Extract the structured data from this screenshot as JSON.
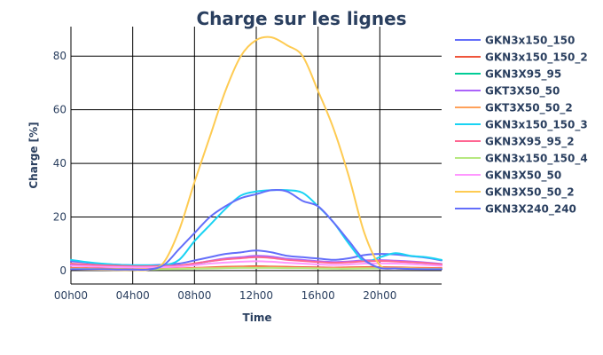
{
  "chart_data": {
    "type": "line",
    "title": "Charge sur les lignes",
    "xlabel": "Time",
    "ylabel": "Charge [%]",
    "xlim": [
      0,
      24
    ],
    "ylim": [
      -5,
      91
    ],
    "x_ticks": [
      {
        "value": 0,
        "label": "00h00"
      },
      {
        "value": 4,
        "label": "04h00"
      },
      {
        "value": 8,
        "label": "08h00"
      },
      {
        "value": 12,
        "label": "12h00"
      },
      {
        "value": 16,
        "label": "16h00"
      },
      {
        "value": 20,
        "label": "20h00"
      }
    ],
    "y_ticks": [
      0,
      20,
      40,
      60,
      80
    ],
    "grid": true,
    "legend_position": "right",
    "x": [
      0,
      1,
      2,
      3,
      4,
      5,
      6,
      7,
      8,
      9,
      10,
      11,
      12,
      13,
      14,
      15,
      16,
      17,
      18,
      19,
      20,
      21,
      22,
      23,
      24
    ],
    "series": [
      {
        "name": "GKN3x150_150",
        "color": "#636efa",
        "values": [
          3.5,
          3.0,
          2.5,
          2.2,
          2.0,
          2.0,
          2.2,
          2.6,
          3.8,
          5.0,
          6.2,
          6.8,
          7.5,
          6.8,
          5.5,
          5.0,
          4.5,
          4.0,
          4.6,
          5.8,
          6.2,
          6.0,
          5.4,
          4.8,
          3.8
        ]
      },
      {
        "name": "GKN3x150_150_2",
        "color": "#ef553b",
        "values": [
          1.0,
          0.9,
          0.8,
          0.7,
          0.6,
          0.6,
          0.7,
          0.8,
          1.0,
          1.2,
          1.4,
          1.5,
          1.6,
          1.5,
          1.4,
          1.3,
          1.2,
          1.1,
          1.2,
          1.3,
          1.3,
          1.2,
          1.1,
          1.0,
          0.9
        ]
      },
      {
        "name": "GKN3X95_95",
        "color": "#00cc96",
        "values": [
          2.0,
          1.8,
          1.6,
          1.5,
          1.4,
          1.4,
          1.5,
          1.7,
          2.5,
          3.5,
          4.3,
          4.8,
          5.3,
          5.0,
          4.2,
          3.8,
          3.3,
          3.0,
          3.2,
          3.6,
          3.7,
          3.5,
          3.2,
          2.8,
          2.3
        ]
      },
      {
        "name": "GKT3X50_50",
        "color": "#ab63fa",
        "values": [
          2.2,
          2.0,
          1.8,
          1.6,
          1.5,
          1.5,
          1.6,
          1.8,
          2.6,
          3.6,
          4.5,
          5.0,
          5.5,
          5.2,
          4.4,
          4.0,
          3.5,
          3.2,
          3.4,
          3.8,
          3.9,
          3.7,
          3.4,
          3.0,
          2.5
        ]
      },
      {
        "name": "GKT3X50_50_2",
        "color": "#ffa15a",
        "values": [
          0.8,
          0.7,
          0.6,
          0.6,
          0.5,
          0.5,
          0.6,
          0.7,
          0.9,
          1.0,
          1.1,
          1.2,
          1.2,
          1.2,
          1.1,
          1.0,
          0.9,
          0.9,
          0.9,
          1.0,
          1.0,
          1.0,
          0.9,
          0.8,
          0.7
        ]
      },
      {
        "name": "GKN3x150_150_3",
        "color": "#19d3f3",
        "values": [
          4.0,
          3.2,
          2.6,
          2.2,
          2.0,
          2.0,
          2.0,
          4.0,
          11.0,
          17.0,
          23.0,
          28.0,
          29.5,
          30.0,
          30.0,
          29.0,
          24.0,
          18.0,
          10.0,
          3.5,
          5.0,
          6.5,
          5.5,
          5.0,
          4.0
        ]
      },
      {
        "name": "GKN3X95_95_2",
        "color": "#ff6692",
        "values": [
          2.6,
          2.3,
          2.0,
          1.8,
          1.6,
          1.6,
          1.7,
          1.9,
          2.7,
          3.5,
          4.2,
          4.6,
          5.0,
          4.7,
          4.0,
          3.6,
          3.2,
          2.9,
          3.1,
          3.5,
          3.6,
          3.4,
          3.1,
          2.8,
          2.3
        ]
      },
      {
        "name": "GKN3x150_150_4",
        "color": "#b6e880",
        "values": [
          0.6,
          0.6,
          0.5,
          0.5,
          0.4,
          0.4,
          0.5,
          0.6,
          0.7,
          0.8,
          0.9,
          1.0,
          1.0,
          1.0,
          0.9,
          0.9,
          0.8,
          0.7,
          0.7,
          0.8,
          0.8,
          0.8,
          0.7,
          0.6,
          0.6
        ]
      },
      {
        "name": "GKN3X50_50",
        "color": "#ff97ff",
        "values": [
          1.8,
          1.6,
          1.4,
          1.3,
          1.2,
          1.2,
          1.3,
          1.5,
          2.0,
          2.6,
          3.0,
          3.3,
          3.5,
          3.3,
          2.9,
          2.6,
          2.3,
          2.1,
          2.3,
          2.6,
          2.7,
          2.6,
          2.4,
          2.1,
          1.8
        ]
      },
      {
        "name": "GKN3X50_50_2",
        "color": "#fecb52",
        "values": [
          0.5,
          0.4,
          0.3,
          0.2,
          0.2,
          0.3,
          3.0,
          15.0,
          33.0,
          50.0,
          67.0,
          80.0,
          86.0,
          87.0,
          84.0,
          80.0,
          67.0,
          53.0,
          35.0,
          14.0,
          2.0,
          0.8,
          0.6,
          0.5,
          0.5
        ]
      },
      {
        "name": "GKN3X240_240",
        "color": "#636efa",
        "values": [
          0.5,
          0.5,
          0.5,
          0.4,
          0.4,
          0.4,
          2.0,
          8.0,
          14.0,
          20.0,
          24.0,
          27.0,
          28.5,
          30.0,
          29.5,
          26.0,
          24.0,
          18.0,
          11.0,
          4.0,
          1.0,
          0.8,
          0.6,
          0.5,
          0.5
        ]
      }
    ]
  }
}
